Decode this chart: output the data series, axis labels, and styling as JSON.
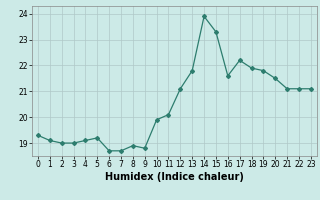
{
  "x": [
    0,
    1,
    2,
    3,
    4,
    5,
    6,
    7,
    8,
    9,
    10,
    11,
    12,
    13,
    14,
    15,
    16,
    17,
    18,
    19,
    20,
    21,
    22,
    23
  ],
  "y": [
    19.3,
    19.1,
    19.0,
    19.0,
    19.1,
    19.2,
    18.7,
    18.7,
    18.9,
    18.8,
    19.9,
    20.1,
    21.1,
    21.8,
    23.9,
    23.3,
    21.6,
    22.2,
    21.9,
    21.8,
    21.5,
    21.1,
    21.1,
    21.1
  ],
  "xlabel": "Humidex (Indice chaleur)",
  "ylim": [
    18.5,
    24.3
  ],
  "yticks": [
    19,
    20,
    21,
    22,
    23,
    24
  ],
  "xticks": [
    0,
    1,
    2,
    3,
    4,
    5,
    6,
    7,
    8,
    9,
    10,
    11,
    12,
    13,
    14,
    15,
    16,
    17,
    18,
    19,
    20,
    21,
    22,
    23
  ],
  "line_color": "#2d7d6e",
  "marker": "D",
  "marker_size": 2.0,
  "bg_color": "#cceae7",
  "grid_color": "#b0c8c8",
  "tick_fontsize": 5.5,
  "xlabel_fontsize": 7.0,
  "line_width": 0.9
}
